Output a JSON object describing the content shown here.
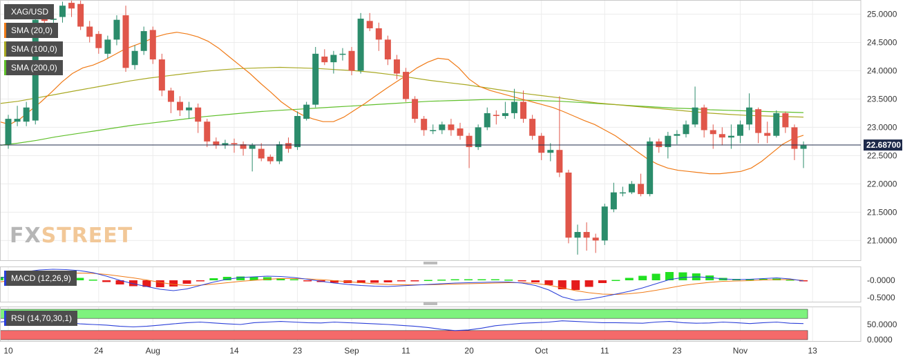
{
  "symbol": "XAG/USD",
  "indicators": {
    "sma20": {
      "label": "SMA (20,0)",
      "color": "#f07a16"
    },
    "sma100": {
      "label": "SMA (100,0)",
      "color": "#a8a821"
    },
    "sma200": {
      "label": "SMA (200,0)",
      "color": "#5fbf2a"
    },
    "macd": {
      "label": "MACD (12,26,9)"
    },
    "rsi": {
      "label": "RSI (14,70,30,1)"
    }
  },
  "logo": {
    "part1": "FX",
    "part2": "STREET"
  },
  "chart_data": {
    "type": "candlestick",
    "price_axis": {
      "ticks": [
        "25.0000",
        "24.5000",
        "24.0000",
        "23.5000",
        "23.0000",
        "22.5000",
        "22.0000",
        "21.5000",
        "21.0000"
      ],
      "range": [
        20.65,
        25.25
      ]
    },
    "last_price": {
      "label": "22.68700",
      "value": 22.687
    },
    "x_ticks": [
      {
        "label": "10",
        "i": 0
      },
      {
        "label": "24",
        "i": 10
      },
      {
        "label": "Aug",
        "i": 16
      },
      {
        "label": "14",
        "i": 25
      },
      {
        "label": "23",
        "i": 32
      },
      {
        "label": "Sep",
        "i": 38
      },
      {
        "label": "11",
        "i": 44
      },
      {
        "label": "20",
        "i": 51
      },
      {
        "label": "Oct",
        "i": 59
      },
      {
        "label": "11",
        "i": 66
      },
      {
        "label": "23",
        "i": 74
      },
      {
        "label": "Nov",
        "i": 81
      },
      {
        "label": "13",
        "i": 89
      }
    ],
    "candles": [
      [
        22.7,
        23.15,
        23.22,
        22.62
      ],
      [
        23.1,
        23.15,
        23.38,
        23.02
      ],
      [
        23.1,
        23.35,
        23.45,
        23.02
      ],
      [
        23.12,
        24.9,
        25.05,
        23.05
      ],
      [
        24.95,
        24.88,
        25.05,
        24.78
      ],
      [
        24.9,
        24.92,
        25.1,
        24.8
      ],
      [
        24.95,
        25.15,
        25.22,
        24.85
      ],
      [
        25.2,
        25.1,
        25.28,
        24.95
      ],
      [
        25.18,
        24.78,
        25.25,
        24.72
      ],
      [
        24.78,
        24.6,
        24.88,
        24.5
      ],
      [
        24.65,
        24.4,
        24.7,
        24.3
      ],
      [
        24.3,
        24.55,
        24.62,
        24.22
      ],
      [
        24.55,
        24.9,
        24.98,
        24.45
      ],
      [
        24.98,
        24.05,
        25.15,
        23.98
      ],
      [
        24.1,
        24.35,
        24.45,
        24.02
      ],
      [
        24.35,
        24.7,
        24.78,
        24.28
      ],
      [
        24.72,
        24.2,
        24.78,
        24.12
      ],
      [
        24.2,
        23.65,
        24.3,
        23.55
      ],
      [
        23.65,
        23.45,
        23.7,
        23.25
      ],
      [
        23.45,
        23.3,
        23.55,
        23.2
      ],
      [
        23.3,
        23.35,
        23.45,
        23.15
      ],
      [
        23.35,
        23.1,
        23.42,
        22.9
      ],
      [
        23.1,
        22.75,
        23.15,
        22.65
      ],
      [
        22.75,
        22.68,
        22.82,
        22.62
      ],
      [
        22.68,
        22.72,
        22.78,
        22.62
      ],
      [
        22.72,
        22.7,
        22.8,
        22.55
      ],
      [
        22.7,
        22.62,
        22.75,
        22.5
      ],
      [
        22.62,
        22.68,
        22.72,
        22.22
      ],
      [
        22.62,
        22.45,
        22.72,
        22.4
      ],
      [
        22.48,
        22.4,
        22.52,
        22.35
      ],
      [
        22.4,
        22.7,
        22.75,
        22.35
      ],
      [
        22.72,
        22.62,
        22.82,
        22.55
      ],
      [
        22.65,
        23.2,
        23.28,
        22.6
      ],
      [
        23.15,
        23.4,
        23.45,
        23.12
      ],
      [
        23.4,
        24.3,
        24.42,
        23.35
      ],
      [
        24.25,
        24.15,
        24.38,
        24.1
      ],
      [
        24.15,
        24.28,
        24.35,
        23.95
      ],
      [
        24.3,
        24.3,
        24.4,
        24.18
      ],
      [
        24.35,
        24.0,
        24.42,
        23.92
      ],
      [
        24.0,
        24.92,
        25.02,
        23.95
      ],
      [
        24.88,
        24.75,
        25.02,
        24.7
      ],
      [
        24.75,
        24.55,
        24.85,
        24.35
      ],
      [
        24.55,
        24.2,
        24.62,
        24.1
      ],
      [
        24.2,
        23.95,
        24.28,
        23.85
      ],
      [
        23.98,
        23.5,
        24.05,
        23.45
      ],
      [
        23.5,
        23.15,
        23.55,
        23.08
      ],
      [
        23.15,
        22.95,
        23.2,
        22.85
      ],
      [
        22.95,
        22.95,
        23.05,
        22.88
      ],
      [
        22.95,
        23.05,
        23.1,
        22.88
      ],
      [
        23.05,
        22.95,
        23.15,
        22.85
      ],
      [
        22.98,
        22.85,
        23.08,
        22.78
      ],
      [
        22.85,
        22.65,
        22.9,
        22.28
      ],
      [
        22.65,
        23.0,
        23.05,
        22.6
      ],
      [
        23.0,
        23.25,
        23.35,
        22.95
      ],
      [
        23.22,
        23.2,
        23.3,
        23.05
      ],
      [
        23.2,
        23.25,
        23.45,
        23.15
      ],
      [
        23.25,
        23.45,
        23.68,
        23.15
      ],
      [
        23.45,
        23.15,
        23.65,
        23.08
      ],
      [
        23.15,
        22.85,
        23.22,
        22.78
      ],
      [
        22.85,
        22.55,
        22.9,
        22.42
      ],
      [
        22.55,
        22.6,
        22.72,
        22.4
      ],
      [
        22.6,
        22.2,
        23.55,
        22.12
      ],
      [
        22.2,
        21.05,
        22.25,
        20.95
      ],
      [
        21.05,
        21.15,
        21.28,
        20.75
      ],
      [
        21.15,
        21.05,
        21.32,
        20.82
      ],
      [
        21.05,
        21.0,
        21.12,
        20.78
      ],
      [
        21.0,
        21.6,
        21.65,
        20.92
      ],
      [
        21.55,
        21.85,
        22.02,
        21.5
      ],
      [
        21.85,
        21.85,
        21.95,
        21.78
      ],
      [
        21.85,
        22.0,
        22.05,
        21.82
      ],
      [
        22.0,
        21.82,
        22.18,
        21.78
      ],
      [
        21.82,
        22.75,
        22.82,
        21.78
      ],
      [
        22.75,
        22.65,
        22.8,
        22.55
      ],
      [
        22.65,
        22.85,
        22.92,
        22.45
      ],
      [
        22.85,
        22.88,
        22.95,
        22.7
      ],
      [
        22.88,
        23.05,
        23.12,
        22.82
      ],
      [
        23.05,
        23.35,
        23.72,
        23.0
      ],
      [
        23.35,
        22.95,
        23.4,
        22.82
      ],
      [
        22.95,
        22.88,
        23.05,
        22.62
      ],
      [
        22.88,
        22.82,
        23.0,
        22.68
      ],
      [
        22.82,
        22.85,
        23.05,
        22.62
      ],
      [
        22.85,
        23.05,
        23.12,
        22.72
      ],
      [
        23.05,
        23.35,
        23.6,
        22.95
      ],
      [
        23.32,
        22.9,
        23.35,
        22.72
      ],
      [
        22.9,
        22.85,
        23.1,
        22.72
      ],
      [
        22.85,
        23.25,
        23.3,
        22.82
      ],
      [
        23.25,
        23.0,
        23.28,
        22.9
      ],
      [
        23.0,
        22.62,
        23.05,
        22.42
      ],
      [
        22.62,
        22.68,
        22.75,
        22.28
      ]
    ],
    "sma20": [
      23.1,
      23.05,
      23.15,
      23.3,
      23.45,
      23.62,
      23.8,
      23.95,
      24.05,
      24.1,
      24.18,
      24.28,
      24.38,
      24.45,
      24.52,
      24.6,
      24.65,
      24.68,
      24.65,
      24.6,
      24.52,
      24.4,
      24.25,
      24.1,
      23.95,
      23.78,
      23.62,
      23.45,
      23.32,
      23.22,
      23.15,
      23.1,
      23.1,
      23.18,
      23.3,
      23.42,
      23.55,
      23.68,
      23.8,
      23.92,
      24.05,
      24.15,
      24.22,
      24.2,
      24.05,
      23.85,
      23.72,
      23.65,
      23.6,
      23.55,
      23.5,
      23.45,
      23.4,
      23.35,
      23.28,
      23.2,
      23.12,
      23.05,
      22.95,
      22.85,
      22.72,
      22.58,
      22.45,
      22.35,
      22.28,
      22.24,
      22.22,
      22.2,
      22.18,
      22.18,
      22.2,
      22.22,
      22.28,
      22.4,
      22.55,
      22.7,
      22.8,
      22.86
    ],
    "sma100": [
      23.42,
      23.46,
      23.52,
      23.58,
      23.64,
      23.7,
      23.76,
      23.82,
      23.87,
      23.91,
      23.95,
      23.99,
      24.02,
      24.04,
      24.05,
      24.06,
      24.05,
      24.04,
      24.02,
      24.0,
      23.97,
      23.93,
      23.88,
      23.83,
      23.79,
      23.75,
      23.7,
      23.65,
      23.6,
      23.56,
      23.52,
      23.47,
      23.43,
      23.4,
      23.37,
      23.34,
      23.31,
      23.28,
      23.25,
      23.23,
      23.21,
      23.2,
      23.19,
      23.18
    ],
    "sma200": [
      22.68,
      22.72,
      22.77,
      22.83,
      22.88,
      22.93,
      22.98,
      23.03,
      23.07,
      23.11,
      23.15,
      23.19,
      23.22,
      23.25,
      23.28,
      23.3,
      23.32,
      23.34,
      23.36,
      23.38,
      23.4,
      23.42,
      23.44,
      23.46,
      23.47,
      23.48,
      23.49,
      23.49,
      23.48,
      23.47,
      23.46,
      23.44,
      23.42,
      23.4,
      23.38,
      23.36,
      23.34,
      23.33,
      23.31,
      23.3,
      23.29,
      23.28,
      23.27,
      23.26
    ],
    "macd_axis": {
      "ticks": [
        "-0.0000",
        "-0.5000"
      ],
      "range": [
        -0.62,
        0.4
      ]
    },
    "macd_line": [
      0.05,
      0.15,
      0.25,
      0.3,
      0.32,
      0.31,
      0.28,
      0.22,
      0.12,
      0.0,
      -0.1,
      -0.18,
      -0.26,
      -0.3,
      -0.25,
      -0.15,
      -0.05,
      0.03,
      0.08,
      0.1,
      0.12,
      0.11,
      0.08,
      0.03,
      -0.03,
      -0.08,
      -0.12,
      -0.15,
      -0.17,
      -0.18,
      -0.16,
      -0.14,
      -0.12,
      -0.1,
      -0.08,
      -0.07,
      -0.06,
      -0.05,
      -0.05,
      -0.08,
      -0.15,
      -0.28,
      -0.48,
      -0.58,
      -0.55,
      -0.48,
      -0.4,
      -0.32,
      -0.22,
      -0.1,
      0.02,
      0.08,
      0.1,
      0.08,
      0.04,
      0.02,
      0.03,
      0.05,
      0.07,
      0.04,
      -0.02
    ],
    "macd_signal": [
      -0.05,
      0.0,
      0.06,
      0.12,
      0.17,
      0.2,
      0.21,
      0.2,
      0.17,
      0.12,
      0.07,
      0.01,
      -0.06,
      -0.12,
      -0.15,
      -0.14,
      -0.11,
      -0.07,
      -0.03,
      0.0,
      0.03,
      0.05,
      0.05,
      0.04,
      0.02,
      -0.01,
      -0.04,
      -0.07,
      -0.1,
      -0.12,
      -0.13,
      -0.13,
      -0.13,
      -0.12,
      -0.11,
      -0.1,
      -0.09,
      -0.08,
      -0.07,
      -0.07,
      -0.09,
      -0.14,
      -0.22,
      -0.3,
      -0.36,
      -0.4,
      -0.41,
      -0.39,
      -0.35,
      -0.29,
      -0.22,
      -0.15,
      -0.1,
      -0.06,
      -0.03,
      -0.02,
      -0.01,
      0.01,
      0.02,
      0.02,
      0.0
    ],
    "macd_hist": [
      0.1,
      0.15,
      0.19,
      0.18,
      0.15,
      0.11,
      0.07,
      0.02,
      -0.05,
      -0.12,
      -0.17,
      -0.19,
      -0.2,
      -0.18,
      -0.1,
      -0.01,
      0.06,
      0.1,
      0.11,
      0.1,
      0.09,
      0.06,
      0.03,
      -0.01,
      -0.05,
      -0.07,
      -0.08,
      -0.08,
      -0.07,
      -0.06,
      -0.03,
      -0.01,
      0.01,
      0.02,
      0.03,
      0.03,
      0.03,
      0.03,
      0.02,
      -0.01,
      -0.06,
      -0.14,
      -0.26,
      -0.28,
      -0.19,
      -0.08,
      0.01,
      0.07,
      0.13,
      0.19,
      0.24,
      0.23,
      0.2,
      0.14,
      0.07,
      0.04,
      0.04,
      0.04,
      0.05,
      0.02,
      -0.02
    ],
    "rsi_axis": {
      "ticks": [
        "50.0000",
        "0.0000"
      ],
      "range": [
        0,
        100
      ]
    },
    "rsi_line": [
      58,
      62,
      65,
      63,
      60,
      58,
      52,
      50,
      48,
      44,
      42,
      44,
      48,
      52,
      56,
      58,
      55,
      52,
      50,
      56,
      58,
      60,
      58,
      56,
      55,
      58,
      56,
      54,
      52,
      50,
      47,
      44,
      40,
      34,
      30,
      32,
      38,
      46,
      50,
      54,
      56,
      58,
      62,
      60,
      58,
      56,
      56,
      55,
      54,
      58,
      60,
      56,
      54,
      55,
      58,
      56,
      53,
      56,
      58,
      54,
      53
    ]
  }
}
